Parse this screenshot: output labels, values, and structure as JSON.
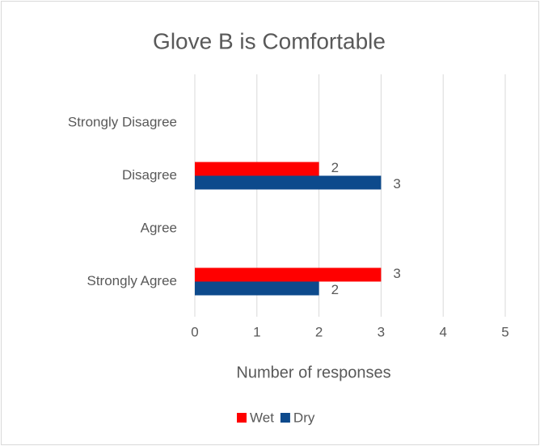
{
  "chart_data": {
    "type": "bar",
    "orientation": "horizontal",
    "title": "Glove B is Comfortable",
    "categories": [
      "Strongly Disagree",
      "Disagree",
      "Agree",
      "Strongly Agree"
    ],
    "series": [
      {
        "name": "Wet",
        "color": "#ff0000",
        "values": [
          null,
          2,
          null,
          3
        ]
      },
      {
        "name": "Dry",
        "color": "#0d4a8c",
        "values": [
          null,
          3,
          null,
          2
        ]
      }
    ],
    "x_label": "Number of responses",
    "xlim": [
      0,
      5
    ],
    "xticks": [
      0,
      1,
      2,
      3,
      4,
      5
    ],
    "grid": true,
    "legend": "bottom"
  }
}
